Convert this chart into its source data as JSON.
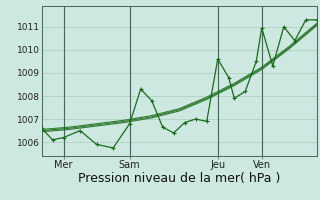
{
  "background_color": "#cce8e0",
  "grid_color": "#aaccbb",
  "line_color": "#1a6b1a",
  "xlabel": "Pression niveau de la mer( hPa )",
  "xlabel_fontsize": 9,
  "ylim": [
    1005.4,
    1011.9
  ],
  "xlim": [
    0,
    100
  ],
  "yticks": [
    1006,
    1007,
    1008,
    1009,
    1010,
    1011
  ],
  "ytick_fontsize": 6.5,
  "xtick_positions": [
    8,
    32,
    64,
    80
  ],
  "xtick_labels": [
    "Mer",
    "Sam",
    "Jeu",
    "Ven"
  ],
  "xtick_fontsize": 7,
  "vline_positions": [
    8,
    32,
    64,
    80
  ],
  "series_wiggly_x": [
    0,
    4,
    8,
    14,
    20,
    26,
    32,
    36,
    40,
    44,
    48,
    52,
    56,
    60,
    64,
    68,
    70,
    74,
    78,
    80,
    84,
    88,
    92,
    96,
    100
  ],
  "series_wiggly_y": [
    1006.6,
    1006.1,
    1006.2,
    1006.5,
    1005.9,
    1005.75,
    1006.8,
    1008.3,
    1007.8,
    1006.65,
    1006.4,
    1006.85,
    1007.0,
    1006.9,
    1009.6,
    1008.8,
    1007.9,
    1008.2,
    1009.5,
    1010.95,
    1009.3,
    1011.0,
    1010.4,
    1011.3,
    1011.3
  ],
  "series_trend1_x": [
    0,
    10,
    20,
    30,
    40,
    50,
    60,
    70,
    80,
    90,
    100
  ],
  "series_trend1_y": [
    1006.5,
    1006.6,
    1006.75,
    1006.9,
    1007.1,
    1007.4,
    1007.9,
    1008.5,
    1009.2,
    1010.1,
    1011.1
  ],
  "series_trend2_x": [
    0,
    10,
    20,
    30,
    40,
    50,
    60,
    70,
    80,
    90,
    100
  ],
  "series_trend2_y": [
    1006.55,
    1006.65,
    1006.8,
    1006.95,
    1007.15,
    1007.45,
    1007.95,
    1008.55,
    1009.25,
    1010.15,
    1011.15
  ],
  "series_trend3_x": [
    0,
    10,
    20,
    30,
    40,
    50,
    60,
    70,
    80,
    90,
    100
  ],
  "series_trend3_y": [
    1006.45,
    1006.55,
    1006.7,
    1006.85,
    1007.05,
    1007.35,
    1007.85,
    1008.45,
    1009.15,
    1010.05,
    1011.05
  ]
}
